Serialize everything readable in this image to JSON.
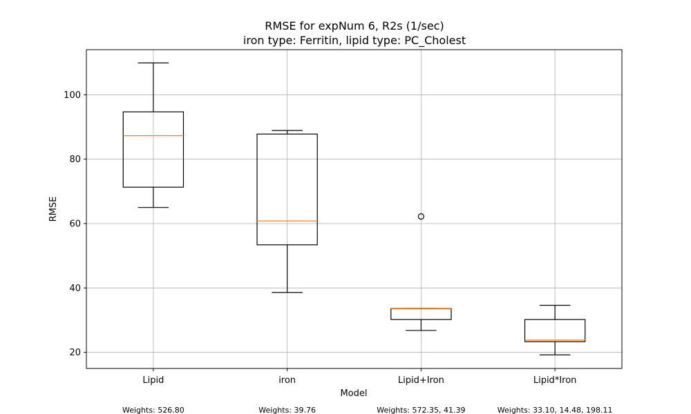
{
  "chart_data": {
    "type": "box",
    "title": "RMSE for expNum 6, R2s (1/sec)",
    "subtitle": "iron type: Ferritin, lipid type: PC_Cholest",
    "xlabel": "Model",
    "ylabel": "RMSE",
    "ylim": [
      15,
      114
    ],
    "yticks": [
      20,
      40,
      60,
      80,
      100
    ],
    "grid": true,
    "categories": [
      "Lipid",
      "iron",
      "Lipid+Iron",
      "Lipid*Iron"
    ],
    "boxes": [
      {
        "whisker_low": 65.0,
        "q1": 71.3,
        "median": 87.3,
        "q3": 94.7,
        "whisker_high": 109.9,
        "outliers": []
      },
      {
        "whisker_low": 38.6,
        "q1": 53.4,
        "median": 60.8,
        "q3": 87.8,
        "whisker_high": 88.9,
        "outliers": []
      },
      {
        "whisker_low": 26.8,
        "q1": 30.2,
        "median": 33.5,
        "q3": 33.6,
        "whisker_high": 33.6,
        "outliers": [
          62.2
        ]
      },
      {
        "whisker_low": 19.2,
        "q1": 23.3,
        "median": 23.8,
        "q3": 30.2,
        "whisker_high": 34.6,
        "outliers": []
      }
    ],
    "annotations": [
      "Weights: 526.80",
      "Weights: 39.76",
      "Weights: 572.35, 41.39",
      "Weights: 33.10, 14.48, 198.11"
    ],
    "colors": {
      "box": "#000000",
      "median": "#ff7f0e",
      "grid": "#b0b0b0"
    }
  }
}
